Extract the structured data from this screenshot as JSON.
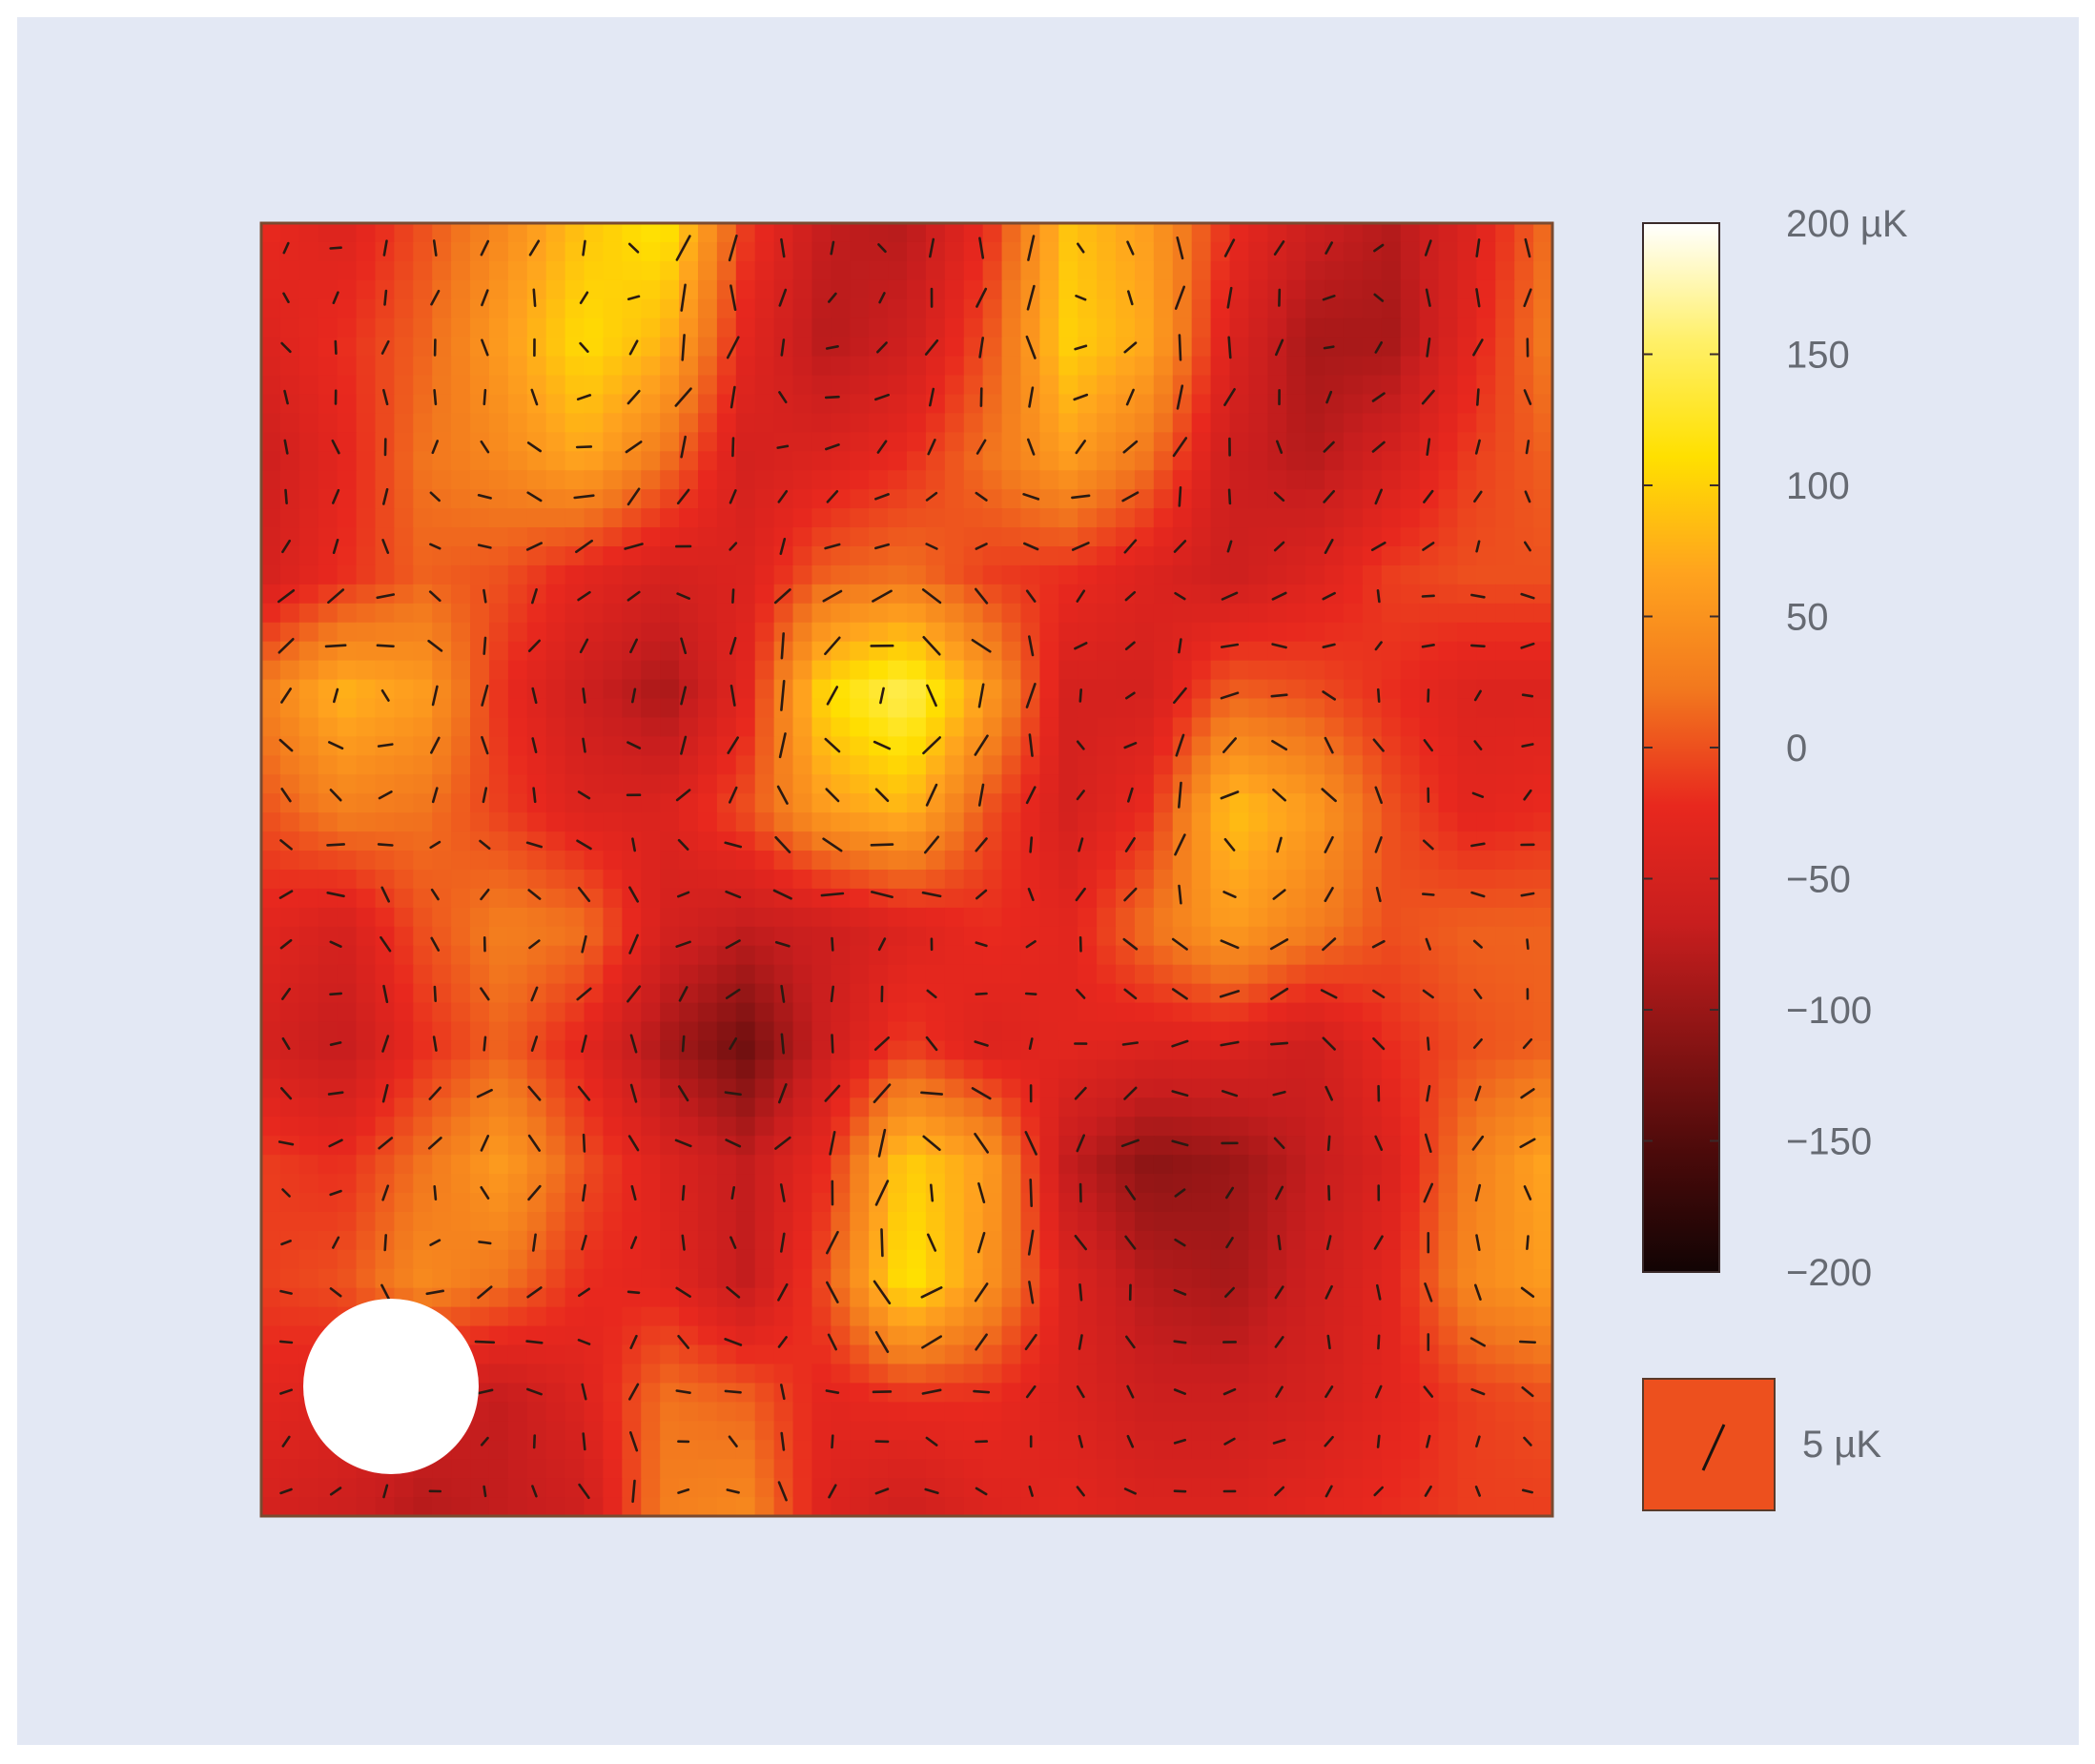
{
  "chart_data": {
    "type": "heatmap",
    "title": "",
    "xlabel": "",
    "ylabel": "",
    "grid": false,
    "colormap": "hot",
    "colorbar": {
      "range": [
        -200,
        200
      ],
      "unit": "µK",
      "ticks": [
        200,
        150,
        100,
        50,
        0,
        -50,
        -100,
        -150,
        -200
      ],
      "tick_labels": [
        "200 µK",
        "150",
        "100",
        "50",
        "0",
        "−50",
        "−100",
        "−150",
        "−200"
      ],
      "colors": [
        "#ffffff",
        "#fff06a",
        "#ffe000",
        "#ffa31e",
        "#f2781e",
        "#e8281e",
        "#c81e1e",
        "#8a1414",
        "#4a0a0a",
        "#120404"
      ]
    },
    "polarization_scale": {
      "label": "5 µK",
      "value": 5
    },
    "beam": {
      "color": "#ffffff"
    },
    "temperature_grid": {
      "unit": "µK",
      "rows": [
        [
          -20,
          -40,
          0,
          40,
          90,
          120,
          -10,
          -70,
          -80,
          -20,
          90,
          60,
          -20,
          -60,
          -80,
          -40,
          20
        ],
        [
          -40,
          -20,
          10,
          60,
          110,
          80,
          -30,
          -80,
          -60,
          0,
          100,
          70,
          -40,
          -90,
          -90,
          -30,
          30
        ],
        [
          -60,
          -30,
          20,
          40,
          70,
          20,
          -50,
          -40,
          -20,
          20,
          60,
          20,
          -60,
          -80,
          -50,
          -10,
          10
        ],
        [
          -50,
          -20,
          10,
          0,
          -30,
          -50,
          -40,
          10,
          20,
          -10,
          -20,
          -40,
          -60,
          -40,
          -10,
          0,
          0
        ],
        [
          30,
          80,
          60,
          -20,
          -60,
          -90,
          -30,
          110,
          150,
          60,
          -50,
          -50,
          10,
          0,
          -20,
          -40,
          -40
        ],
        [
          0,
          30,
          20,
          -10,
          -40,
          -40,
          0,
          60,
          80,
          0,
          -50,
          -20,
          90,
          60,
          0,
          -30,
          -20
        ],
        [
          -30,
          -50,
          0,
          30,
          20,
          -50,
          -70,
          -60,
          -40,
          -20,
          -30,
          20,
          60,
          30,
          0,
          10,
          10
        ],
        [
          -50,
          -70,
          -20,
          10,
          -30,
          -90,
          -130,
          -60,
          -10,
          -40,
          -30,
          -40,
          -40,
          -60,
          -20,
          0,
          10
        ],
        [
          -10,
          -20,
          20,
          60,
          0,
          -40,
          -70,
          -20,
          100,
          60,
          -70,
          -110,
          -100,
          -70,
          -40,
          30,
          70
        ],
        [
          -10,
          0,
          40,
          20,
          -20,
          -30,
          -70,
          0,
          120,
          50,
          -40,
          -80,
          -90,
          -60,
          -30,
          40,
          60
        ],
        [
          -30,
          -40,
          -60,
          -70,
          -40,
          20,
          10,
          -30,
          -20,
          -20,
          -40,
          -60,
          -60,
          -50,
          -30,
          -10,
          0
        ],
        [
          -50,
          -60,
          -80,
          -70,
          -60,
          30,
          40,
          -40,
          -60,
          -40,
          -30,
          -40,
          -40,
          -30,
          -20,
          -10,
          -10
        ]
      ]
    }
  }
}
